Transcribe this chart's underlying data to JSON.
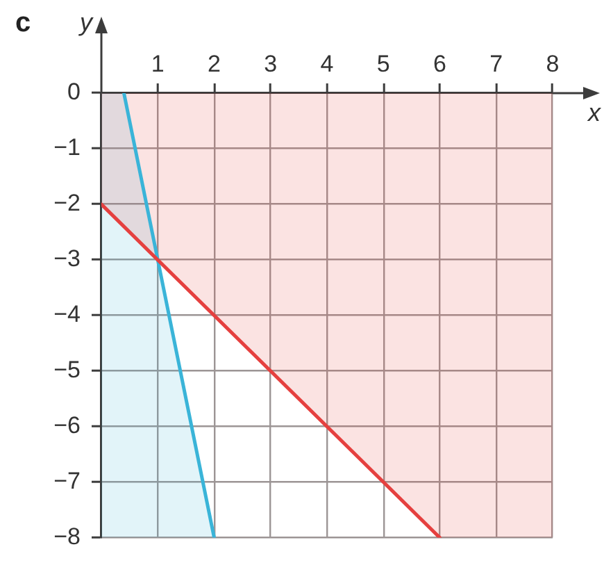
{
  "chart_data": {
    "type": "line",
    "title": "c",
    "xlabel": "x",
    "ylabel": "y",
    "xlim": [
      0,
      8
    ],
    "xticks": [
      1,
      2,
      3,
      4,
      5,
      6,
      7,
      8
    ],
    "ylim": [
      -8,
      0
    ],
    "yticks": [
      {
        "value": -8,
        "label": "−8"
      },
      {
        "value": -7,
        "label": "−7"
      },
      {
        "value": -6,
        "label": "−6"
      },
      {
        "value": -5,
        "label": "−5"
      },
      {
        "value": -4,
        "label": "−4"
      },
      {
        "value": -3,
        "label": "−3"
      },
      {
        "value": -2,
        "label": "−2"
      },
      {
        "value": -1,
        "label": "−1"
      },
      0
    ],
    "grid": true,
    "line_style": "solid",
    "series": [
      {
        "color": "#e5403f",
        "x": [
          0,
          6,
          8
        ],
        "values": [
          -2,
          -8,
          null
        ],
        "lower": [
          -2,
          -8,
          -8
        ],
        "upper": [
          0,
          0,
          0
        ]
      },
      {
        "color": "#3ab4d8",
        "x": [
          0,
          0.4,
          2
        ],
        "values": [
          null,
          0,
          -8
        ],
        "lower": [
          -8,
          -8,
          -8
        ],
        "upper": [
          0,
          0,
          -8
        ]
      }
    ]
  }
}
